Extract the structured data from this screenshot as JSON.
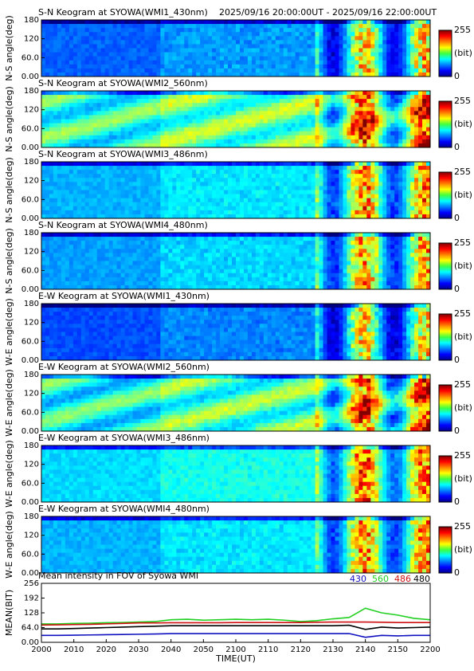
{
  "chart_data": [
    {
      "type": "heatmap",
      "title": "S-N Keogram at SYOWA(WMI1_430nm)",
      "subtitle": "2025/09/16 20:00:00UT - 2025/09/16 22:00:00UT",
      "ylabel": "N-S angle(deg)",
      "ylim": [
        0,
        180
      ],
      "yticks": [
        {
          "value": 0,
          "label": "0.00"
        },
        {
          "value": 60,
          "label": "60.0"
        },
        120,
        180
      ],
      "clim": [
        0,
        255
      ],
      "cticks": [
        0,
        255
      ],
      "clabel": "(bit)"
    },
    {
      "type": "heatmap",
      "title": "S-N Keogram at SYOWA(WMI2_560nm)",
      "ylabel": "N-S angle(deg)",
      "ylim": [
        0,
        180
      ],
      "yticks": [
        {
          "value": 0,
          "label": "0.00"
        },
        {
          "value": 60,
          "label": "60.0"
        },
        120,
        180
      ],
      "clim": [
        0,
        255
      ],
      "cticks": [
        0,
        255
      ],
      "clabel": "(bit)"
    },
    {
      "type": "heatmap",
      "title": "S-N Keogram at SYOWA(WMI3_486nm)",
      "ylabel": "N-S angle(deg)",
      "ylim": [
        0,
        180
      ],
      "yticks": [
        {
          "value": 0,
          "label": "0.00"
        },
        {
          "value": 60,
          "label": "60.0"
        },
        120,
        180
      ],
      "clim": [
        0,
        255
      ],
      "cticks": [
        0,
        255
      ],
      "clabel": "(bit)"
    },
    {
      "type": "heatmap",
      "title": "S-N Keogram at SYOWA(WMI4_480nm)",
      "ylabel": "N-S angle(deg)",
      "ylim": [
        0,
        180
      ],
      "yticks": [
        {
          "value": 0,
          "label": "0.00"
        },
        {
          "value": 60,
          "label": "60.0"
        },
        120,
        180
      ],
      "clim": [
        0,
        255
      ],
      "cticks": [
        0,
        255
      ],
      "clabel": "(bit)"
    },
    {
      "type": "heatmap",
      "title": "E-W Keogram at SYOWA(WMI1_430nm)",
      "ylabel": "W-E angle(deg)",
      "ylim": [
        0,
        180
      ],
      "yticks": [
        {
          "value": 0,
          "label": "0.00"
        },
        {
          "value": 60,
          "label": "60.0"
        },
        120,
        180
      ],
      "clim": [
        0,
        255
      ],
      "cticks": [
        0,
        255
      ],
      "clabel": "(bit)"
    },
    {
      "type": "heatmap",
      "title": "E-W Keogram at SYOWA(WMI2_560nm)",
      "ylabel": "W-E angle(deg)",
      "ylim": [
        0,
        180
      ],
      "yticks": [
        {
          "value": 0,
          "label": "0.00"
        },
        {
          "value": 60,
          "label": "60.0"
        },
        120,
        180
      ],
      "clim": [
        0,
        255
      ],
      "cticks": [
        0,
        255
      ],
      "clabel": "(bit)"
    },
    {
      "type": "heatmap",
      "title": "E-W Keogram at SYOWA(WMI3_486nm)",
      "ylabel": "W-E angle(deg)",
      "ylim": [
        0,
        180
      ],
      "yticks": [
        {
          "value": 0,
          "label": "0.00"
        },
        {
          "value": 60,
          "label": "60.0"
        },
        120,
        180
      ],
      "clim": [
        0,
        255
      ],
      "cticks": [
        0,
        255
      ],
      "clabel": "(bit)"
    },
    {
      "type": "heatmap",
      "title": "E-W Keogram at SYOWA(WMI4_480nm)",
      "ylabel": "W-E angle(deg)",
      "ylim": [
        0,
        180
      ],
      "yticks": [
        {
          "value": 0,
          "label": "0.00"
        },
        {
          "value": 60,
          "label": "60.0"
        },
        120,
        180
      ],
      "clim": [
        0,
        255
      ],
      "cticks": [
        0,
        255
      ],
      "clabel": "(bit)"
    },
    {
      "type": "line",
      "title": "Mean intensity in FOV of Syowa WMI",
      "xlabel": "TIME(UT)",
      "ylabel": "MEAN(BIT)",
      "x": [
        2000,
        2005,
        2010,
        2015,
        2020,
        2025,
        2030,
        2035,
        2040,
        2045,
        2050,
        2055,
        2100,
        2105,
        2110,
        2115,
        2120,
        2125,
        2130,
        2135,
        2140,
        2145,
        2150,
        2155,
        2200
      ],
      "xlim": [
        2000,
        2200
      ],
      "xticks": [
        2000,
        2010,
        2020,
        2030,
        2040,
        2050,
        2100,
        2110,
        2120,
        2130,
        2140,
        2150,
        2200
      ],
      "ylim": [
        0,
        256
      ],
      "yticks": [
        {
          "value": 0,
          "label": "0.00"
        },
        {
          "value": 64,
          "label": "64.0"
        },
        128,
        192,
        256
      ],
      "series": [
        {
          "name": "430",
          "color": "#1010c0",
          "values": [
            30,
            30,
            31,
            32,
            33,
            34,
            35,
            36,
            38,
            38,
            38,
            38,
            38,
            38,
            38,
            38,
            38,
            38,
            38,
            38,
            22,
            30,
            28,
            30,
            30
          ]
        },
        {
          "name": "560",
          "color": "#20d020",
          "values": [
            80,
            80,
            82,
            83,
            85,
            86,
            88,
            90,
            98,
            100,
            96,
            98,
            100,
            98,
            100,
            96,
            90,
            94,
            102,
            108,
            148,
            128,
            118,
            104,
            98
          ]
        },
        {
          "name": "486",
          "color": "#d01010",
          "values": [
            75,
            76,
            77,
            78,
            80,
            82,
            84,
            84,
            85,
            85,
            85,
            85,
            86,
            86,
            86,
            86,
            86,
            87,
            88,
            88,
            88,
            87,
            86,
            86,
            86
          ]
        },
        {
          "name": "480",
          "color": "#000000",
          "values": [
            58,
            58,
            60,
            62,
            64,
            66,
            68,
            70,
            72,
            72,
            72,
            72,
            72,
            72,
            72,
            72,
            72,
            72,
            72,
            74,
            56,
            66,
            62,
            64,
            66
          ]
        }
      ]
    }
  ]
}
